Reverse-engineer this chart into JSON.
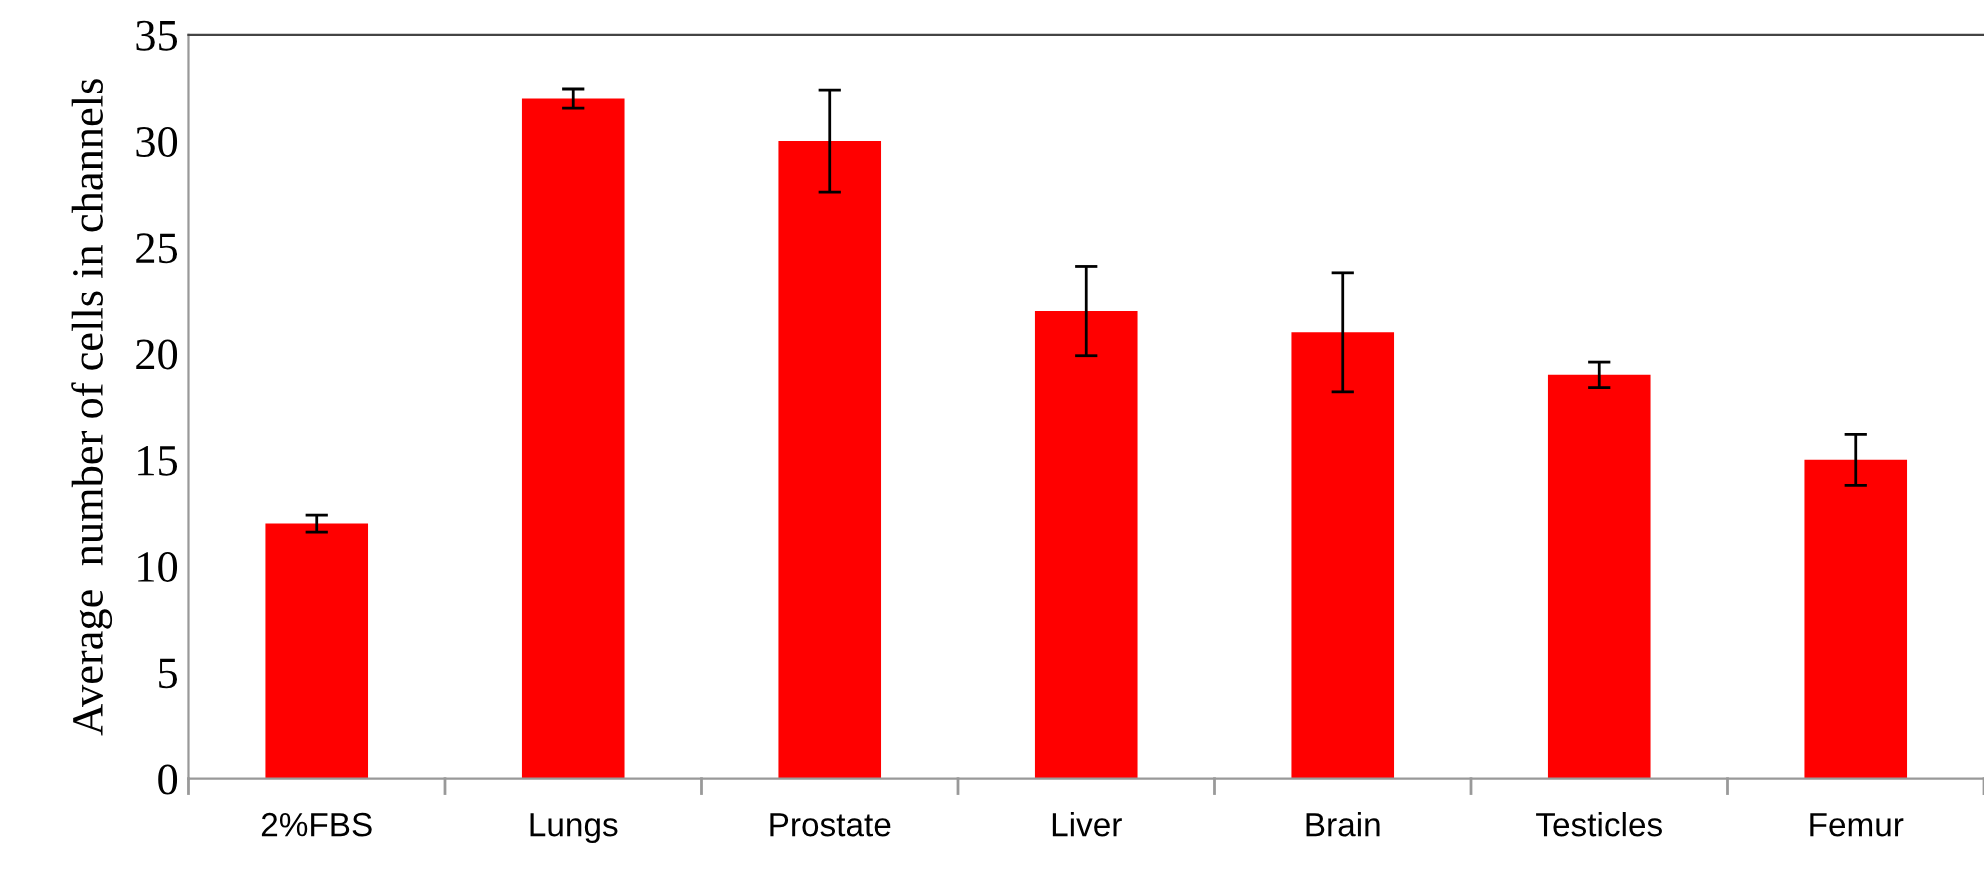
{
  "chart_data": {
    "type": "bar",
    "ylabel": "Average  number of cells in channels",
    "categories": [
      "2%FBS",
      "Lungs",
      "Prostate",
      "Liver",
      "Brain",
      "Testicles",
      "Femur"
    ],
    "values": [
      12,
      32,
      30,
      22,
      21,
      19,
      15
    ],
    "errors": [
      0.4,
      0.45,
      2.4,
      2.1,
      2.8,
      0.6,
      1.2
    ],
    "color": "#ff0000",
    "ylim": [
      0,
      35
    ],
    "yticks": [
      0,
      5,
      10,
      15,
      20,
      25,
      30,
      35
    ],
    "grid": false,
    "legend": false
  }
}
